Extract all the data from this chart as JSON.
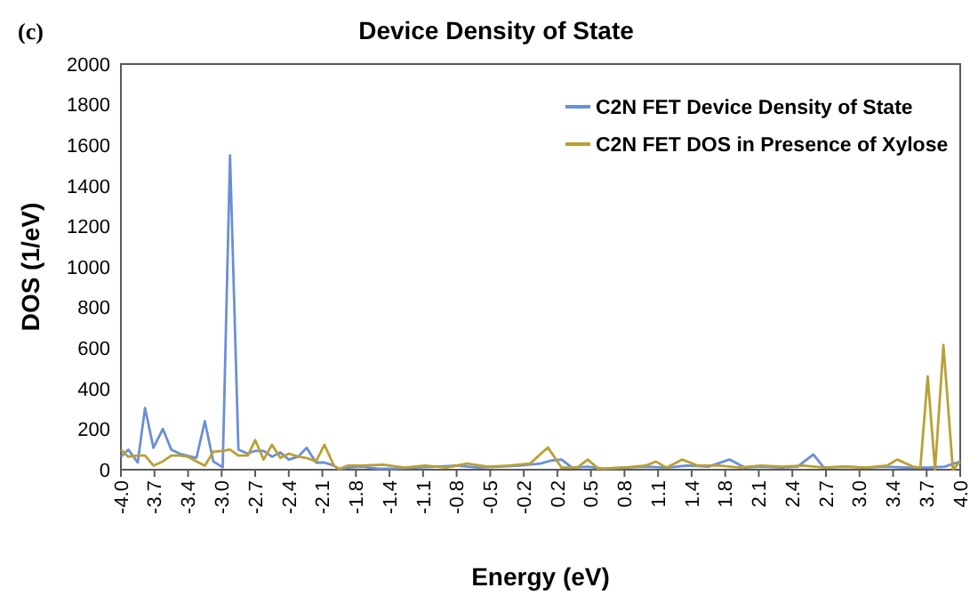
{
  "chart_data": {
    "type": "line",
    "title": "Device Density of State",
    "xlabel": "Energy (eV)",
    "ylabel": "DOS (1/eV)",
    "annotations": [
      "(c)"
    ],
    "xlim": [
      -4,
      4
    ],
    "xticks": [
      {
        "value": -4,
        "label": "-4.0"
      },
      {
        "value": -3.68,
        "label": "-3.7"
      },
      {
        "value": -3.36,
        "label": "-3.4"
      },
      {
        "value": -3.04,
        "label": "-3.0"
      },
      {
        "value": -2.72,
        "label": "-2.7"
      },
      {
        "value": -2.4,
        "label": "-2.4"
      },
      {
        "value": -2.08,
        "label": "-2.1"
      },
      {
        "value": -1.76,
        "label": "-1.8"
      },
      {
        "value": -1.44,
        "label": "-1.4"
      },
      {
        "value": -1.12,
        "label": "-1.1"
      },
      {
        "value": -0.8,
        "label": "-0.8"
      },
      {
        "value": -0.48,
        "label": "-0.5"
      },
      {
        "value": -0.16,
        "label": "-0.2"
      },
      {
        "value": 0.16,
        "label": "0.2"
      },
      {
        "value": 0.48,
        "label": "0.5"
      },
      {
        "value": 0.8,
        "label": "0.8"
      },
      {
        "value": 1.12,
        "label": "1.1"
      },
      {
        "value": 1.44,
        "label": "1.4"
      },
      {
        "value": 1.76,
        "label": "1.8"
      },
      {
        "value": 2.08,
        "label": "2.1"
      },
      {
        "value": 2.4,
        "label": "2.4"
      },
      {
        "value": 2.72,
        "label": "2.7"
      },
      {
        "value": 3.04,
        "label": "3.0"
      },
      {
        "value": 3.36,
        "label": "3.4"
      },
      {
        "value": 3.68,
        "label": "3.7"
      },
      {
        "value": 4,
        "label": "4.0"
      }
    ],
    "ylim": [
      0,
      2000
    ],
    "yticks": [
      0,
      200,
      400,
      600,
      800,
      1000,
      1200,
      1400,
      1600,
      1800,
      2000
    ],
    "grid": false,
    "legend": "top right",
    "marker": "none",
    "line_style": "solid",
    "series": [
      {
        "name": "C2N FET Device Density of State",
        "color": "#6b8fd6",
        "x": [
          -4.0,
          -3.93,
          -3.84,
          -3.77,
          -3.69,
          -3.6,
          -3.52,
          -3.44,
          -3.28,
          -3.2,
          -3.12,
          -3.03,
          -2.96,
          -2.88,
          -2.79,
          -2.72,
          -2.64,
          -2.56,
          -2.48,
          -2.4,
          -2.31,
          -2.23,
          -2.14,
          -2.06,
          -1.97,
          -1.92,
          -1.84,
          -1.7,
          -1.55,
          -1.4,
          -1.2,
          -1.0,
          -0.8,
          -0.6,
          -0.4,
          -0.2,
          0.0,
          0.1,
          0.2,
          0.3,
          0.45,
          0.6,
          0.8,
          1.0,
          1.2,
          1.4,
          1.6,
          1.8,
          1.95,
          2.1,
          2.3,
          2.45,
          2.6,
          2.7,
          2.9,
          3.1,
          3.3,
          3.5,
          3.7,
          3.85,
          4.0
        ],
        "values": [
          64,
          99,
          35,
          304,
          108,
          201,
          99,
          79,
          58,
          239,
          41,
          12,
          1550,
          99,
          79,
          93,
          93,
          64,
          85,
          50,
          64,
          108,
          35,
          35,
          20,
          3,
          10,
          15,
          5,
          5,
          10,
          15,
          20,
          10,
          15,
          20,
          30,
          45,
          50,
          10,
          15,
          5,
          10,
          15,
          10,
          20,
          15,
          50,
          10,
          15,
          10,
          15,
          75,
          10,
          15,
          10,
          15,
          10,
          10,
          15,
          40
        ]
      },
      {
        "name": "C2N FET DOS in Presence of Xylose",
        "color": "#b9a035",
        "x": [
          -4.0,
          -3.93,
          -3.84,
          -3.77,
          -3.69,
          -3.6,
          -3.52,
          -3.44,
          -3.36,
          -3.28,
          -3.2,
          -3.12,
          -3.03,
          -2.96,
          -2.88,
          -2.79,
          -2.72,
          -2.64,
          -2.56,
          -2.48,
          -2.4,
          -2.31,
          -2.23,
          -2.14,
          -2.06,
          -1.97,
          -1.92,
          -1.84,
          -1.7,
          -1.5,
          -1.3,
          -1.1,
          -0.9,
          -0.7,
          -0.5,
          -0.3,
          -0.1,
          0.07,
          0.2,
          0.35,
          0.45,
          0.55,
          0.8,
          1.0,
          1.1,
          1.2,
          1.35,
          1.5,
          1.7,
          1.9,
          2.1,
          2.3,
          2.5,
          2.7,
          2.9,
          3.1,
          3.3,
          3.4,
          3.55,
          3.62,
          3.69,
          3.76,
          3.84,
          3.93,
          4.0
        ],
        "values": [
          99,
          64,
          70,
          70,
          20,
          41,
          70,
          70,
          64,
          41,
          20,
          88,
          93,
          99,
          70,
          70,
          146,
          50,
          123,
          58,
          79,
          64,
          58,
          41,
          123,
          20,
          3,
          20,
          20,
          25,
          10,
          20,
          10,
          30,
          15,
          20,
          30,
          110,
          10,
          10,
          50,
          5,
          10,
          20,
          40,
          10,
          50,
          20,
          20,
          10,
          20,
          15,
          20,
          10,
          15,
          10,
          20,
          50,
          15,
          10,
          460,
          0,
          614,
          0,
          40
        ]
      }
    ]
  }
}
